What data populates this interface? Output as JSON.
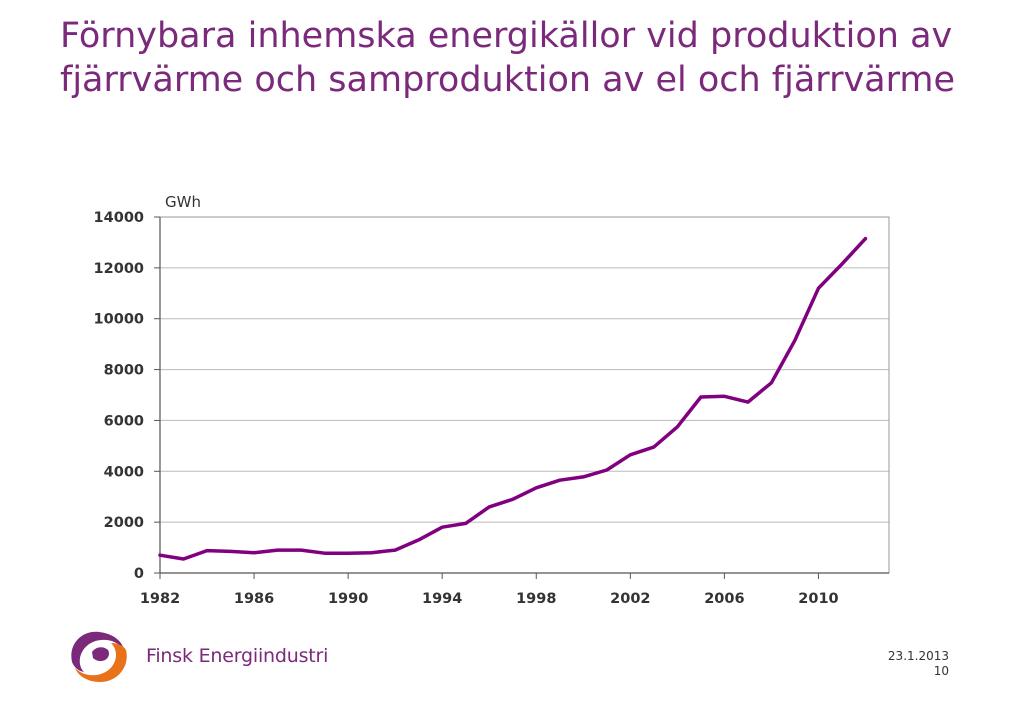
{
  "slide": {
    "title": "Förnybara inhemska energikällor vid produktion av fjärrvärme och samproduktion av el och fjärrvärme",
    "brand": "Finsk Energiindustri",
    "date": "23.1.2013",
    "page": "10"
  },
  "colors": {
    "accent": "#7b2a7b",
    "line": "#800080",
    "logo_orange": "#e8711a",
    "logo_purple": "#7b2a7b",
    "grid": "#bbbbbb"
  },
  "chart_data": {
    "type": "line",
    "title": "",
    "ylabel": "GWh",
    "xlabel": "",
    "xlim": [
      1982,
      2013
    ],
    "ylim": [
      0,
      14000
    ],
    "grid": true,
    "x_ticks": [
      1982,
      1986,
      1990,
      1994,
      1998,
      2002,
      2006,
      2010
    ],
    "y_ticks": [
      0,
      2000,
      4000,
      6000,
      8000,
      10000,
      12000,
      14000
    ],
    "x_tick_labels": [
      "1982",
      "1986",
      "1990",
      "1994",
      "1998",
      "2002",
      "2006",
      "2010"
    ],
    "y_tick_labels": [
      "0",
      "2000",
      "4000",
      "6000",
      "8000",
      "10000",
      "12000",
      "14000"
    ],
    "x": [
      1982,
      1983,
      1984,
      1985,
      1986,
      1987,
      1988,
      1989,
      1990,
      1991,
      1992,
      1993,
      1994,
      1995,
      1996,
      1997,
      1998,
      1999,
      2000,
      2001,
      2002,
      2003,
      2004,
      2005,
      2006,
      2007,
      2008,
      2009,
      2010,
      2011,
      2012
    ],
    "series": [
      {
        "values": [
          700,
          550,
          880,
          850,
          800,
          900,
          900,
          780,
          780,
          800,
          900,
          1300,
          1800,
          1950,
          2600,
          2900,
          3350,
          3650,
          3780,
          4050,
          4650,
          4950,
          5750,
          6920,
          6950,
          6720,
          7480,
          9150,
          11200,
          12150,
          13150
        ]
      }
    ]
  }
}
